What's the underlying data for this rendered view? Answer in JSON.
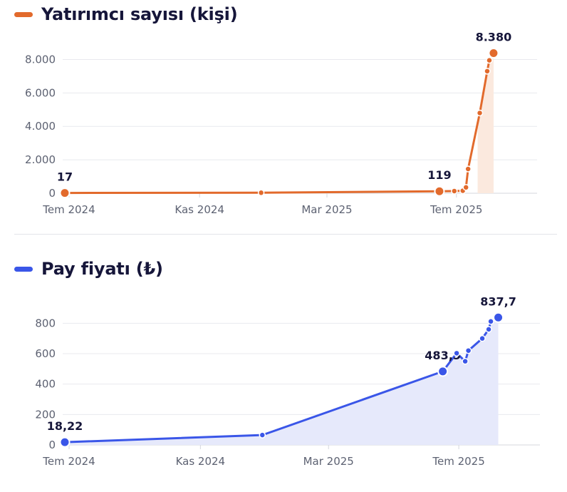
{
  "colors": {
    "investors": "#e26a2c",
    "investors_fill": "#fbe9de",
    "price": "#3a56e8",
    "price_fill": "#e6e9fb",
    "grid": "#e8e9ee",
    "axis": "#d5d7de"
  },
  "chart_data": [
    {
      "type": "line",
      "title": "Yatırımcı sayısı (kişi)",
      "xlim": [
        "2024-06-25",
        "2025-09-15"
      ],
      "ylim": [
        0,
        9000
      ],
      "yticks": [
        {
          "value": 0,
          "label": "0"
        },
        {
          "value": 2000,
          "label": "2.000"
        },
        {
          "value": 4000,
          "label": "4.000"
        },
        {
          "value": 6000,
          "label": "6.000"
        },
        {
          "value": 8000,
          "label": "8.000"
        }
      ],
      "xticks": [
        {
          "date": "2024-07-01",
          "label": "Tem 2024"
        },
        {
          "date": "2024-11-01",
          "label": "Kas 2024"
        },
        {
          "date": "2025-03-01",
          "label": "Mar 2025"
        },
        {
          "date": "2025-07-01",
          "label": "Tem 2025"
        }
      ],
      "grid": true,
      "area_start": "2025-07-21",
      "series": [
        {
          "points": [
            {
              "x": "2024-06-27",
              "y": 17,
              "label": "17",
              "major": true
            },
            {
              "x": "2024-12-29",
              "y": 30
            },
            {
              "x": "2025-06-15",
              "y": 119,
              "label": "119",
              "major": true
            },
            {
              "x": "2025-06-29",
              "y": 130
            },
            {
              "x": "2025-07-07",
              "y": 150
            },
            {
              "x": "2025-07-10",
              "y": 350
            },
            {
              "x": "2025-07-12",
              "y": 1450
            },
            {
              "x": "2025-07-23",
              "y": 4800
            },
            {
              "x": "2025-07-30",
              "y": 7300
            },
            {
              "x": "2025-08-01",
              "y": 7950
            },
            {
              "x": "2025-08-05",
              "y": 8380,
              "label": "8.380",
              "major": true
            }
          ]
        }
      ]
    },
    {
      "type": "line",
      "title": "Pay fiyatı (₺)",
      "xlim": [
        "2024-06-25",
        "2025-09-15"
      ],
      "ylim": [
        0,
        900
      ],
      "yticks": [
        {
          "value": 0,
          "label": "0"
        },
        {
          "value": 200,
          "label": "200"
        },
        {
          "value": 400,
          "label": "400"
        },
        {
          "value": 600,
          "label": "600"
        },
        {
          "value": 800,
          "label": "800"
        }
      ],
      "xticks": [
        {
          "date": "2024-07-01",
          "label": "Tem 2024"
        },
        {
          "date": "2024-11-01",
          "label": "Kas 2024"
        },
        {
          "date": "2025-03-01",
          "label": "Mar 2025"
        },
        {
          "date": "2025-07-01",
          "label": "Tem 2025"
        }
      ],
      "grid": true,
      "area_start": "2024-06-25",
      "series": [
        {
          "points": [
            {
              "x": "2024-06-27",
              "y": 18.22,
              "label": "18,22",
              "major": true
            },
            {
              "x": "2024-12-29",
              "y": 65
            },
            {
              "x": "2025-06-16",
              "y": 483.5,
              "label": "483,5",
              "major": true
            },
            {
              "x": "2025-06-29",
              "y": 603
            },
            {
              "x": "2025-07-07",
              "y": 550
            },
            {
              "x": "2025-07-10",
              "y": 620
            },
            {
              "x": "2025-07-23",
              "y": 700
            },
            {
              "x": "2025-07-29",
              "y": 760
            },
            {
              "x": "2025-07-31",
              "y": 812
            },
            {
              "x": "2025-08-07",
              "y": 837.7,
              "label": "837,7",
              "major": true
            }
          ]
        }
      ]
    }
  ]
}
